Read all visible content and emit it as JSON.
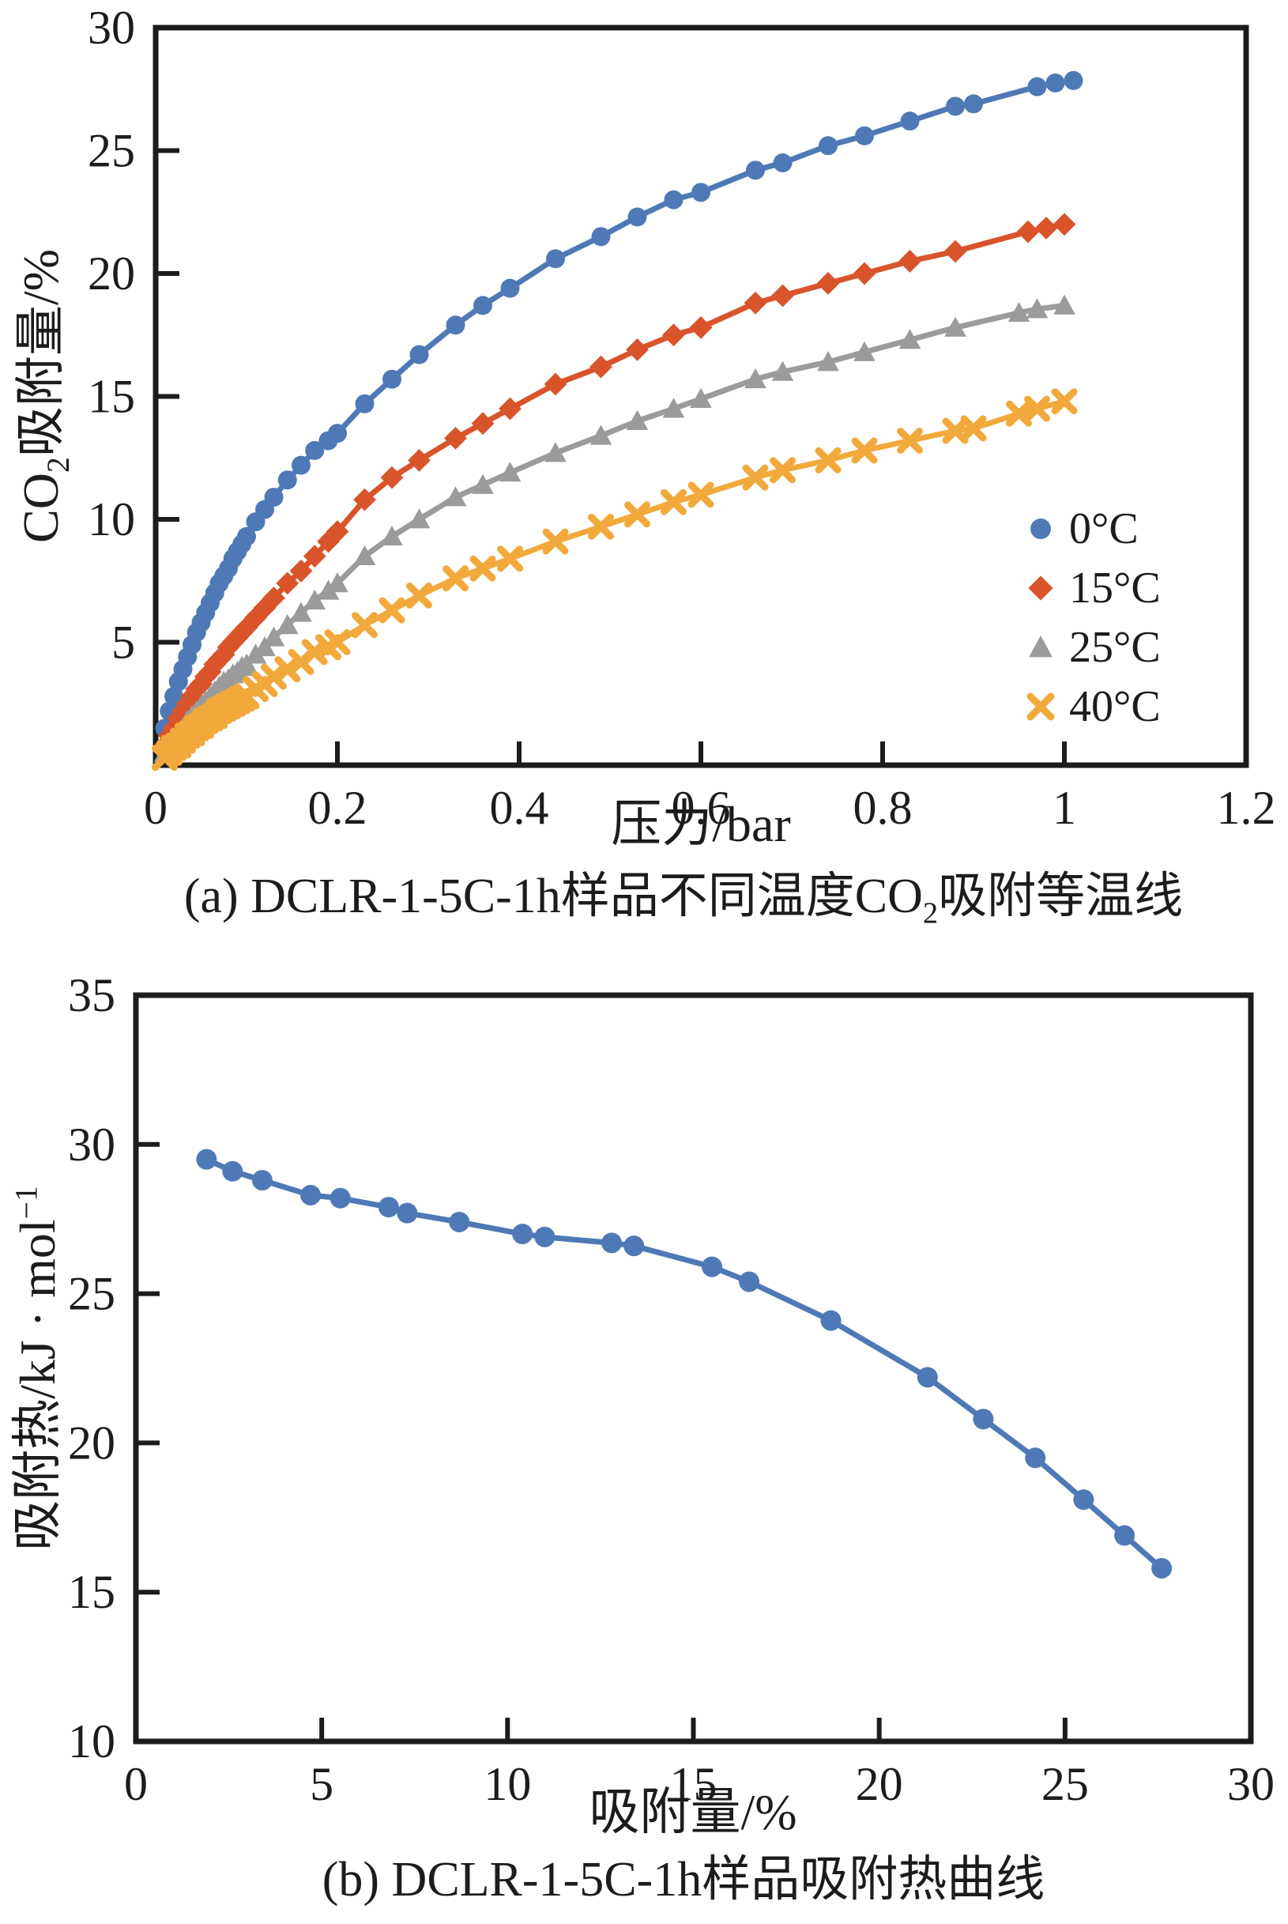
{
  "figure": {
    "panel_a": {
      "ylabel": {
        "pre": "CO",
        "sub": "2",
        "post": "吸附量/%"
      },
      "xlabel": "压力/bar",
      "caption": {
        "pre": "(a) DCLR-1-5C-1h样品不同温度CO",
        "sub": "2",
        "post": "吸附等温线"
      }
    },
    "panel_b": {
      "ylabel": {
        "pre": "吸附热/kJ · mol",
        "sup": "−1"
      },
      "xlabel": "吸附量/%",
      "caption": "(b) DCLR-1-5C-1h样品吸附热曲线"
    }
  },
  "chart_data": [
    {
      "type": "line",
      "title": "",
      "xlabel": "压力/bar",
      "ylabel": "CO2吸附量/%",
      "xlim": [
        0,
        1.2
      ],
      "ylim": [
        0,
        30
      ],
      "grid": false,
      "legend_position": "right-middle",
      "xticks": {
        "values": [
          0,
          0.2,
          0.4,
          0.6,
          0.8,
          1,
          1.2
        ],
        "labels": [
          "0",
          "0.2",
          "0.4",
          "0.6",
          "0.8",
          "1",
          "1.2"
        ]
      },
      "yticks": {
        "values": [
          5,
          10,
          15,
          20,
          25,
          30
        ],
        "labels": [
          "5",
          "10",
          "15",
          "20",
          "25",
          "30"
        ]
      },
      "series": [
        {
          "name": "0°C",
          "color": "#4e79b6",
          "marker": "circle",
          "x": [
            0.01,
            0.015,
            0.02,
            0.025,
            0.03,
            0.035,
            0.04,
            0.045,
            0.05,
            0.055,
            0.06,
            0.065,
            0.07,
            0.075,
            0.08,
            0.085,
            0.09,
            0.095,
            0.1,
            0.11,
            0.12,
            0.13,
            0.145,
            0.16,
            0.175,
            0.19,
            0.2,
            0.23,
            0.26,
            0.29,
            0.33,
            0.36,
            0.39,
            0.44,
            0.49,
            0.53,
            0.57,
            0.6,
            0.66,
            0.69,
            0.74,
            0.78,
            0.83,
            0.88,
            0.9,
            0.97,
            0.99,
            1.01
          ],
          "y": [
            1.5,
            2.2,
            2.8,
            3.4,
            3.9,
            4.4,
            4.9,
            5.4,
            5.8,
            6.2,
            6.6,
            7.0,
            7.4,
            7.7,
            8.0,
            8.4,
            8.7,
            9.0,
            9.3,
            9.9,
            10.4,
            10.9,
            11.6,
            12.2,
            12.8,
            13.2,
            13.5,
            14.7,
            15.7,
            16.7,
            17.9,
            18.7,
            19.4,
            20.6,
            21.5,
            22.3,
            23.0,
            23.3,
            24.2,
            24.5,
            25.2,
            25.6,
            26.2,
            26.8,
            26.9,
            27.6,
            27.75,
            27.85
          ]
        },
        {
          "name": "15°C",
          "color": "#d9542b",
          "marker": "diamond",
          "x": [
            0.01,
            0.015,
            0.02,
            0.025,
            0.03,
            0.035,
            0.04,
            0.045,
            0.05,
            0.055,
            0.06,
            0.065,
            0.07,
            0.075,
            0.08,
            0.085,
            0.09,
            0.095,
            0.1,
            0.11,
            0.12,
            0.13,
            0.145,
            0.16,
            0.175,
            0.19,
            0.2,
            0.23,
            0.26,
            0.29,
            0.33,
            0.36,
            0.39,
            0.44,
            0.49,
            0.53,
            0.57,
            0.6,
            0.66,
            0.69,
            0.74,
            0.78,
            0.83,
            0.88,
            0.96,
            0.98,
            1.0
          ],
          "y": [
            0.8,
            1.2,
            1.5,
            1.9,
            2.2,
            2.5,
            2.8,
            3.1,
            3.3,
            3.6,
            3.8,
            4.1,
            4.3,
            4.5,
            4.8,
            5.0,
            5.2,
            5.4,
            5.6,
            6.0,
            6.4,
            6.8,
            7.4,
            7.9,
            8.5,
            9.1,
            9.5,
            10.8,
            11.7,
            12.4,
            13.3,
            13.9,
            14.5,
            15.5,
            16.2,
            16.9,
            17.5,
            17.8,
            18.8,
            19.1,
            19.6,
            20.0,
            20.5,
            20.9,
            21.7,
            21.85,
            22.0
          ]
        },
        {
          "name": "25°C",
          "color": "#9b9b9b",
          "marker": "triangle",
          "x": [
            0.01,
            0.015,
            0.02,
            0.025,
            0.03,
            0.035,
            0.04,
            0.045,
            0.05,
            0.055,
            0.06,
            0.065,
            0.07,
            0.075,
            0.08,
            0.085,
            0.09,
            0.095,
            0.1,
            0.11,
            0.12,
            0.13,
            0.145,
            0.16,
            0.175,
            0.19,
            0.2,
            0.23,
            0.26,
            0.29,
            0.33,
            0.36,
            0.39,
            0.44,
            0.49,
            0.53,
            0.57,
            0.6,
            0.66,
            0.69,
            0.74,
            0.78,
            0.83,
            0.88,
            0.95,
            0.97,
            1.0
          ],
          "y": [
            0.5,
            0.8,
            1.0,
            1.3,
            1.5,
            1.8,
            2.0,
            2.2,
            2.4,
            2.6,
            2.8,
            3.0,
            3.2,
            3.4,
            3.5,
            3.7,
            3.8,
            4.0,
            4.1,
            4.5,
            4.8,
            5.2,
            5.7,
            6.2,
            6.7,
            7.1,
            7.4,
            8.5,
            9.3,
            10.0,
            10.9,
            11.4,
            11.9,
            12.7,
            13.4,
            14.0,
            14.5,
            14.9,
            15.7,
            16.0,
            16.4,
            16.8,
            17.3,
            17.8,
            18.4,
            18.55,
            18.7
          ]
        },
        {
          "name": "40°C",
          "color": "#f2a93c",
          "marker": "xmark",
          "x": [
            0.01,
            0.015,
            0.02,
            0.025,
            0.03,
            0.035,
            0.04,
            0.045,
            0.05,
            0.055,
            0.06,
            0.065,
            0.07,
            0.075,
            0.08,
            0.085,
            0.09,
            0.095,
            0.1,
            0.11,
            0.12,
            0.13,
            0.145,
            0.16,
            0.175,
            0.19,
            0.2,
            0.23,
            0.26,
            0.29,
            0.33,
            0.36,
            0.39,
            0.44,
            0.49,
            0.53,
            0.57,
            0.6,
            0.66,
            0.69,
            0.74,
            0.78,
            0.83,
            0.88,
            0.9,
            0.95,
            0.97,
            1.0
          ],
          "y": [
            0.3,
            0.5,
            0.7,
            0.8,
            1.0,
            1.2,
            1.3,
            1.5,
            1.6,
            1.8,
            1.9,
            2.0,
            2.2,
            2.3,
            2.4,
            2.5,
            2.6,
            2.7,
            2.8,
            3.1,
            3.3,
            3.6,
            3.9,
            4.2,
            4.6,
            4.8,
            5.0,
            5.7,
            6.3,
            6.9,
            7.6,
            8.0,
            8.4,
            9.1,
            9.7,
            10.2,
            10.7,
            11.0,
            11.7,
            12.0,
            12.4,
            12.8,
            13.2,
            13.6,
            13.7,
            14.3,
            14.5,
            14.8
          ]
        }
      ]
    },
    {
      "type": "line",
      "title": "",
      "xlabel": "吸附量/%",
      "ylabel": "吸附热/kJ·mol−1",
      "xlim": [
        0,
        30
      ],
      "ylim": [
        10,
        35
      ],
      "grid": false,
      "legend_position": "none",
      "xticks": {
        "values": [
          0,
          5,
          10,
          15,
          20,
          25,
          30
        ],
        "labels": [
          "0",
          "5",
          "10",
          "15",
          "20",
          "25",
          "30"
        ]
      },
      "yticks": {
        "values": [
          10,
          15,
          20,
          25,
          30,
          35
        ],
        "labels": [
          "10",
          "15",
          "20",
          "25",
          "30",
          "35"
        ]
      },
      "series": [
        {
          "name": "吸附热",
          "color": "#4e79b6",
          "marker": "circle",
          "x": [
            1.9,
            2.6,
            3.4,
            4.7,
            5.5,
            6.8,
            7.3,
            8.7,
            10.4,
            11.0,
            12.8,
            13.4,
            15.5,
            16.5,
            18.7,
            21.3,
            22.8,
            24.2,
            25.5,
            26.6,
            27.6
          ],
          "y": [
            29.5,
            29.1,
            28.8,
            28.3,
            28.2,
            27.9,
            27.7,
            27.4,
            27.0,
            26.9,
            26.7,
            26.6,
            25.9,
            25.4,
            24.1,
            22.2,
            20.8,
            19.5,
            18.1,
            16.9,
            15.8
          ]
        }
      ]
    }
  ]
}
